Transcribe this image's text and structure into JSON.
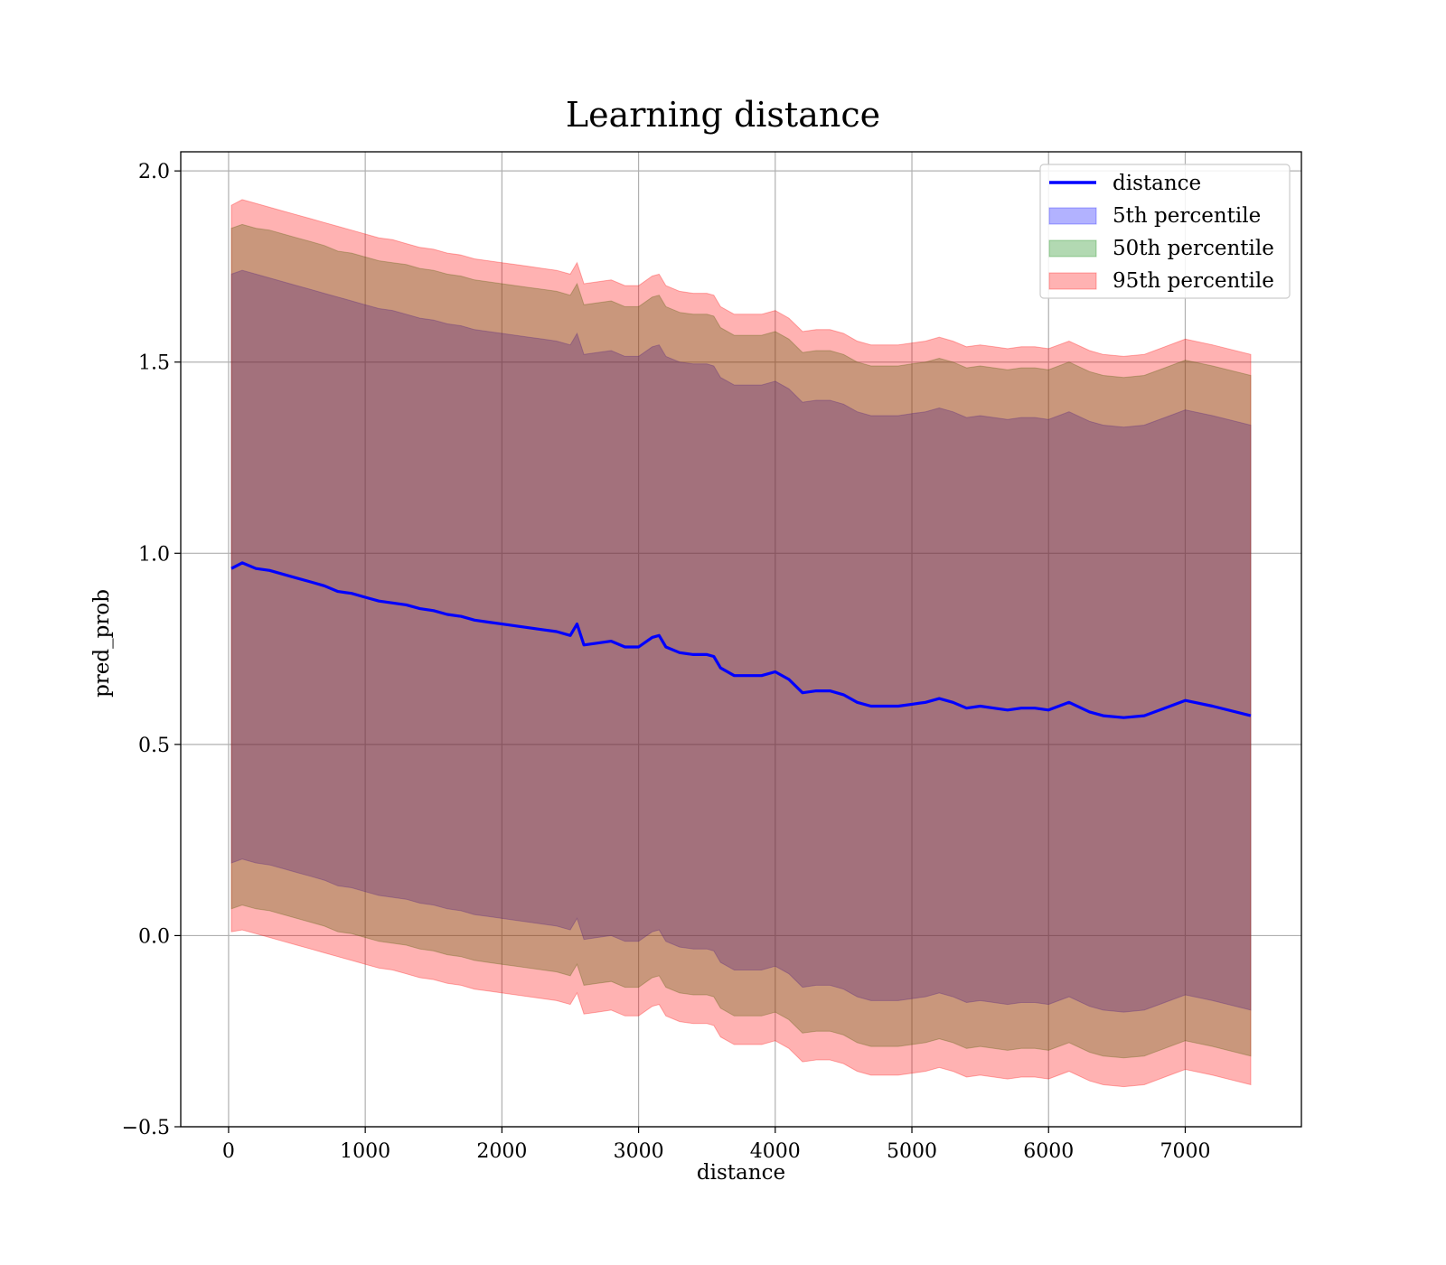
{
  "chart_data": {
    "type": "area",
    "title": "Learning distance",
    "xlabel": "distance",
    "ylabel": "pred_prob",
    "xlim": [
      -350,
      7850
    ],
    "ylim": [
      -0.5,
      2.05
    ],
    "xticks": [
      0,
      1000,
      2000,
      3000,
      4000,
      5000,
      6000,
      7000
    ],
    "yticks": [
      -0.5,
      0.0,
      0.5,
      1.0,
      1.5,
      2.0
    ],
    "xtick_labels": [
      "0",
      "1000",
      "2000",
      "3000",
      "4000",
      "5000",
      "6000",
      "7000"
    ],
    "ytick_labels": [
      "−0.5",
      "0.0",
      "0.5",
      "1.0",
      "1.5",
      "2.0"
    ],
    "grid": true,
    "legend_position": "top-right",
    "x": [
      20,
      100,
      200,
      300,
      400,
      500,
      600,
      700,
      800,
      900,
      1000,
      1100,
      1200,
      1300,
      1400,
      1500,
      1600,
      1700,
      1800,
      1900,
      2000,
      2100,
      2200,
      2300,
      2400,
      2500,
      2550,
      2600,
      2700,
      2800,
      2900,
      3000,
      3100,
      3150,
      3200,
      3300,
      3400,
      3500,
      3550,
      3600,
      3700,
      3800,
      3900,
      4000,
      4100,
      4200,
      4300,
      4400,
      4500,
      4600,
      4700,
      4800,
      4900,
      5000,
      5100,
      5200,
      5300,
      5400,
      5500,
      5600,
      5700,
      5800,
      5900,
      6000,
      6150,
      6300,
      6400,
      6550,
      6700,
      6850,
      7000,
      7200,
      7480
    ],
    "series": [
      {
        "name": "distance",
        "color": "#0000ff",
        "values": [
          0.96,
          0.975,
          0.96,
          0.955,
          0.945,
          0.935,
          0.925,
          0.915,
          0.9,
          0.895,
          0.885,
          0.875,
          0.87,
          0.865,
          0.855,
          0.85,
          0.84,
          0.835,
          0.825,
          0.82,
          0.815,
          0.81,
          0.805,
          0.8,
          0.795,
          0.785,
          0.815,
          0.76,
          0.765,
          0.77,
          0.755,
          0.755,
          0.78,
          0.785,
          0.755,
          0.74,
          0.735,
          0.735,
          0.73,
          0.7,
          0.68,
          0.68,
          0.68,
          0.69,
          0.67,
          0.635,
          0.64,
          0.64,
          0.63,
          0.61,
          0.6,
          0.6,
          0.6,
          0.605,
          0.61,
          0.62,
          0.61,
          0.595,
          0.6,
          0.595,
          0.59,
          0.595,
          0.595,
          0.59,
          0.61,
          0.585,
          0.575,
          0.57,
          0.575,
          0.595,
          0.615,
          0.6,
          0.575
        ]
      },
      {
        "name": "5th percentile",
        "color": "#0000ff",
        "upper": [
          1.73,
          1.74,
          1.73,
          1.72,
          1.71,
          1.7,
          1.69,
          1.68,
          1.67,
          1.66,
          1.65,
          1.64,
          1.635,
          1.625,
          1.615,
          1.61,
          1.6,
          1.595,
          1.585,
          1.58,
          1.575,
          1.57,
          1.565,
          1.56,
          1.555,
          1.545,
          1.575,
          1.52,
          1.525,
          1.53,
          1.515,
          1.515,
          1.54,
          1.545,
          1.515,
          1.5,
          1.495,
          1.495,
          1.49,
          1.46,
          1.44,
          1.44,
          1.44,
          1.45,
          1.43,
          1.395,
          1.4,
          1.4,
          1.39,
          1.37,
          1.36,
          1.36,
          1.36,
          1.365,
          1.37,
          1.38,
          1.37,
          1.355,
          1.36,
          1.355,
          1.35,
          1.355,
          1.355,
          1.35,
          1.37,
          1.345,
          1.335,
          1.33,
          1.335,
          1.355,
          1.375,
          1.36,
          1.335
        ],
        "lower": [
          0.19,
          0.2,
          0.19,
          0.185,
          0.175,
          0.165,
          0.155,
          0.145,
          0.13,
          0.125,
          0.115,
          0.105,
          0.1,
          0.095,
          0.085,
          0.08,
          0.07,
          0.065,
          0.055,
          0.05,
          0.045,
          0.04,
          0.035,
          0.03,
          0.025,
          0.015,
          0.045,
          -0.01,
          -0.005,
          0.0,
          -0.015,
          -0.015,
          0.01,
          0.015,
          -0.015,
          -0.03,
          -0.035,
          -0.035,
          -0.04,
          -0.07,
          -0.09,
          -0.09,
          -0.09,
          -0.08,
          -0.1,
          -0.135,
          -0.13,
          -0.13,
          -0.14,
          -0.16,
          -0.17,
          -0.17,
          -0.17,
          -0.165,
          -0.16,
          -0.15,
          -0.16,
          -0.175,
          -0.17,
          -0.175,
          -0.18,
          -0.175,
          -0.175,
          -0.18,
          -0.16,
          -0.185,
          -0.195,
          -0.2,
          -0.195,
          -0.175,
          -0.155,
          -0.17,
          -0.195
        ]
      },
      {
        "name": "50th percentile",
        "color": "#008000",
        "upper": [
          1.85,
          1.86,
          1.85,
          1.845,
          1.835,
          1.825,
          1.815,
          1.805,
          1.79,
          1.785,
          1.775,
          1.765,
          1.76,
          1.755,
          1.745,
          1.74,
          1.73,
          1.725,
          1.715,
          1.71,
          1.705,
          1.7,
          1.695,
          1.69,
          1.685,
          1.675,
          1.705,
          1.65,
          1.655,
          1.66,
          1.645,
          1.645,
          1.67,
          1.675,
          1.645,
          1.63,
          1.625,
          1.625,
          1.62,
          1.59,
          1.57,
          1.57,
          1.57,
          1.58,
          1.56,
          1.525,
          1.53,
          1.53,
          1.52,
          1.5,
          1.49,
          1.49,
          1.49,
          1.495,
          1.5,
          1.51,
          1.5,
          1.485,
          1.49,
          1.485,
          1.48,
          1.485,
          1.485,
          1.48,
          1.5,
          1.475,
          1.465,
          1.46,
          1.465,
          1.485,
          1.505,
          1.49,
          1.465
        ],
        "lower": [
          0.07,
          0.08,
          0.07,
          0.065,
          0.055,
          0.045,
          0.035,
          0.025,
          0.01,
          0.005,
          -0.005,
          -0.015,
          -0.02,
          -0.025,
          -0.035,
          -0.04,
          -0.05,
          -0.055,
          -0.065,
          -0.07,
          -0.075,
          -0.08,
          -0.085,
          -0.09,
          -0.095,
          -0.105,
          -0.075,
          -0.13,
          -0.125,
          -0.12,
          -0.135,
          -0.135,
          -0.11,
          -0.105,
          -0.135,
          -0.15,
          -0.155,
          -0.155,
          -0.16,
          -0.19,
          -0.21,
          -0.21,
          -0.21,
          -0.2,
          -0.22,
          -0.255,
          -0.25,
          -0.25,
          -0.26,
          -0.28,
          -0.29,
          -0.29,
          -0.29,
          -0.285,
          -0.28,
          -0.27,
          -0.28,
          -0.295,
          -0.29,
          -0.295,
          -0.3,
          -0.295,
          -0.295,
          -0.3,
          -0.28,
          -0.305,
          -0.315,
          -0.32,
          -0.315,
          -0.295,
          -0.275,
          -0.29,
          -0.315
        ]
      },
      {
        "name": "95th percentile",
        "color": "#ff0000",
        "upper": [
          1.91,
          1.925,
          1.915,
          1.905,
          1.895,
          1.885,
          1.875,
          1.865,
          1.855,
          1.845,
          1.835,
          1.825,
          1.82,
          1.81,
          1.8,
          1.795,
          1.785,
          1.78,
          1.77,
          1.765,
          1.76,
          1.755,
          1.75,
          1.745,
          1.74,
          1.73,
          1.76,
          1.705,
          1.71,
          1.715,
          1.7,
          1.7,
          1.725,
          1.73,
          1.7,
          1.685,
          1.68,
          1.68,
          1.675,
          1.645,
          1.625,
          1.625,
          1.625,
          1.635,
          1.615,
          1.58,
          1.585,
          1.585,
          1.575,
          1.555,
          1.545,
          1.545,
          1.545,
          1.55,
          1.555,
          1.565,
          1.555,
          1.54,
          1.545,
          1.54,
          1.535,
          1.54,
          1.54,
          1.535,
          1.555,
          1.53,
          1.52,
          1.515,
          1.52,
          1.54,
          1.56,
          1.545,
          1.52
        ],
        "lower": [
          0.01,
          0.015,
          0.005,
          -0.005,
          -0.015,
          -0.025,
          -0.035,
          -0.045,
          -0.055,
          -0.065,
          -0.075,
          -0.085,
          -0.09,
          -0.1,
          -0.11,
          -0.115,
          -0.125,
          -0.13,
          -0.14,
          -0.145,
          -0.15,
          -0.155,
          -0.16,
          -0.165,
          -0.17,
          -0.18,
          -0.15,
          -0.205,
          -0.2,
          -0.195,
          -0.21,
          -0.21,
          -0.185,
          -0.18,
          -0.21,
          -0.225,
          -0.23,
          -0.23,
          -0.235,
          -0.265,
          -0.285,
          -0.285,
          -0.285,
          -0.275,
          -0.295,
          -0.33,
          -0.325,
          -0.325,
          -0.335,
          -0.355,
          -0.365,
          -0.365,
          -0.365,
          -0.36,
          -0.355,
          -0.345,
          -0.355,
          -0.37,
          -0.365,
          -0.37,
          -0.375,
          -0.37,
          -0.37,
          -0.375,
          -0.355,
          -0.38,
          -0.39,
          -0.395,
          -0.39,
          -0.37,
          -0.35,
          -0.365,
          -0.39
        ]
      }
    ]
  }
}
